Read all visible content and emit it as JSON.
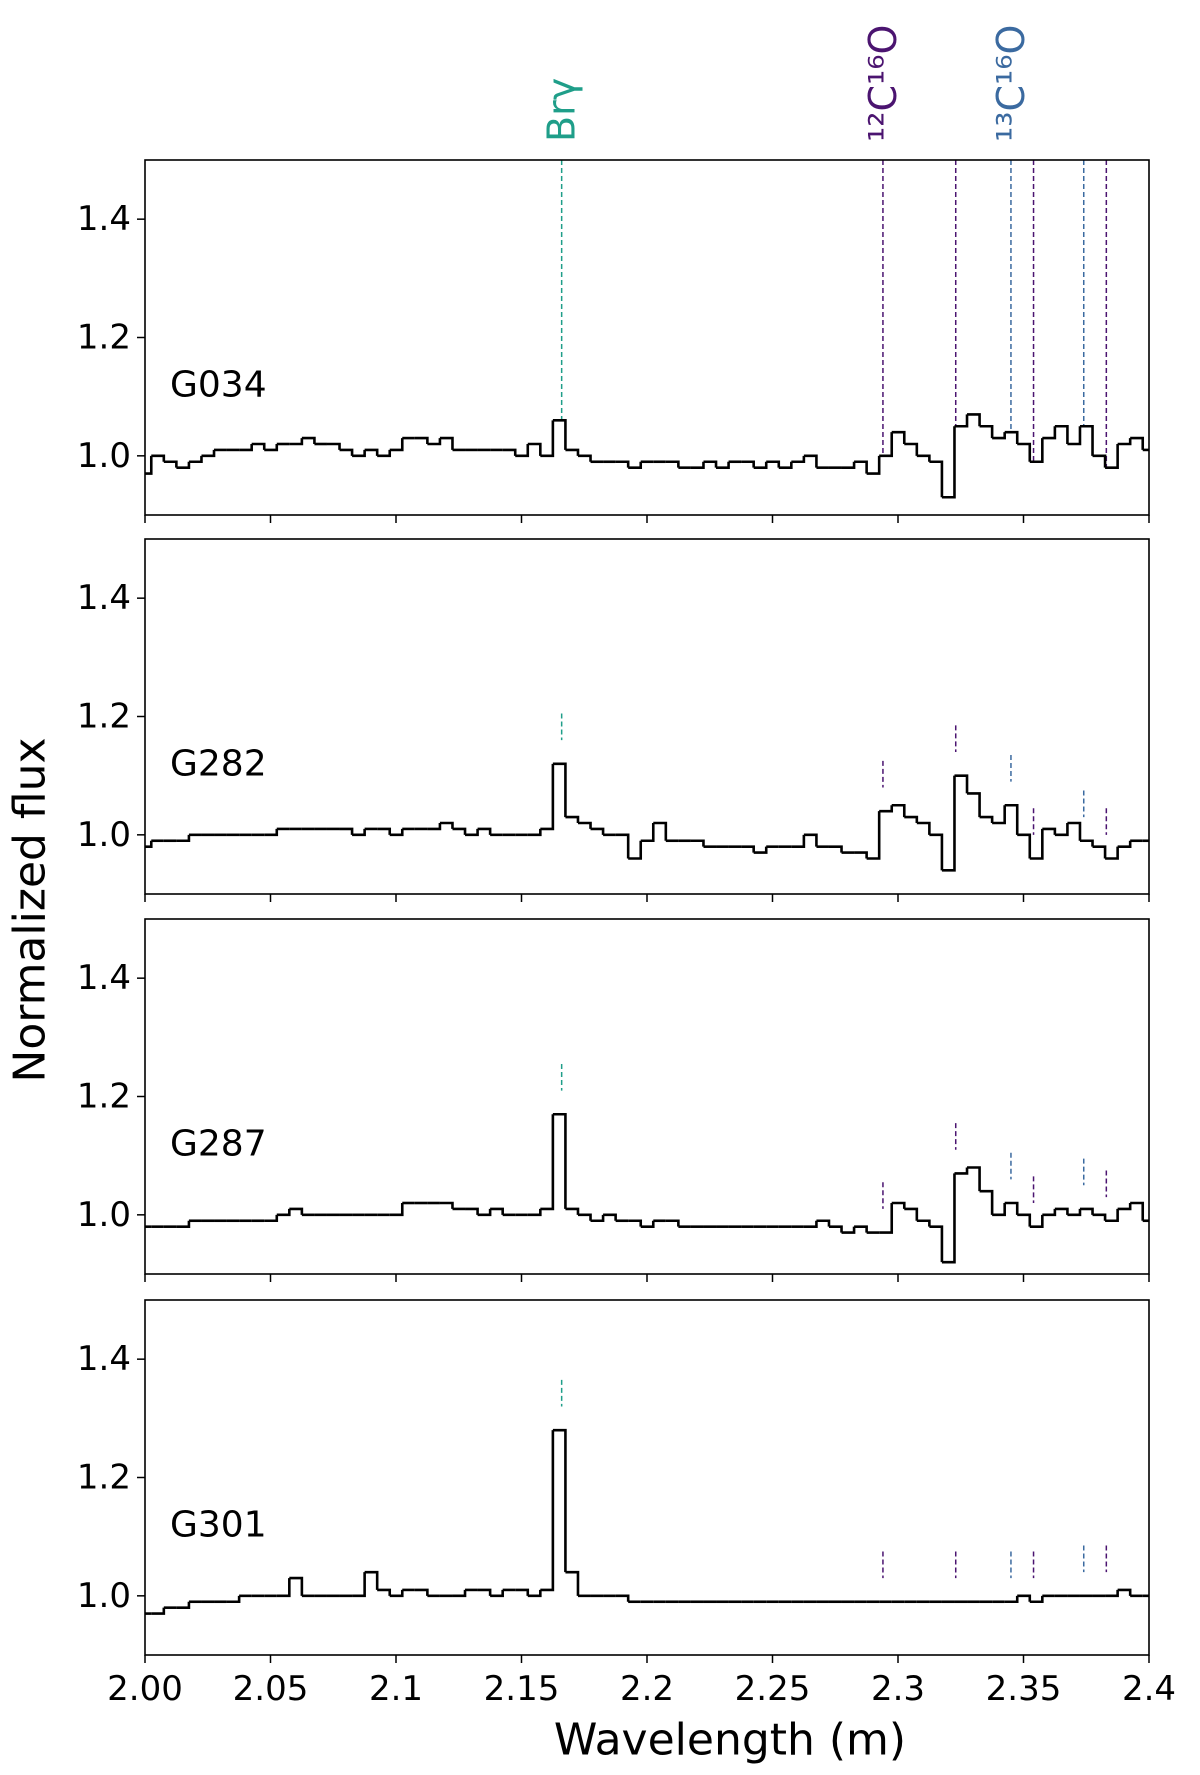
{
  "chart_data": {
    "type": "step",
    "xlabel": "Wavelength (m)",
    "ylabel": "Normalized flux",
    "xlim": [
      2.0,
      2.4
    ],
    "xticks": [
      {
        "value": 2.0,
        "label": "2.00"
      },
      2.05,
      2.1,
      2.15,
      2.2,
      2.25,
      2.3,
      2.35,
      2.4
    ],
    "ylim": [
      0.9,
      1.5
    ],
    "yticks": [
      {
        "value": 1.0,
        "label": "1.0"
      },
      1.2,
      1.4
    ],
    "x": [
      2.0,
      2.005,
      2.01,
      2.015,
      2.02,
      2.025,
      2.03,
      2.035,
      2.04,
      2.045,
      2.05,
      2.055,
      2.06,
      2.065,
      2.07,
      2.075,
      2.08,
      2.085,
      2.09,
      2.095,
      2.1,
      2.105,
      2.11,
      2.115,
      2.12,
      2.125,
      2.13,
      2.135,
      2.14,
      2.145,
      2.15,
      2.155,
      2.16,
      2.165,
      2.17,
      2.175,
      2.18,
      2.185,
      2.19,
      2.195,
      2.2,
      2.205,
      2.21,
      2.215,
      2.22,
      2.225,
      2.23,
      2.235,
      2.24,
      2.245,
      2.25,
      2.255,
      2.26,
      2.265,
      2.27,
      2.275,
      2.28,
      2.285,
      2.29,
      2.295,
      2.3,
      2.305,
      2.31,
      2.315,
      2.32,
      2.325,
      2.33,
      2.335,
      2.34,
      2.345,
      2.35,
      2.355,
      2.36,
      2.365,
      2.37,
      2.375,
      2.38,
      2.385,
      2.39,
      2.395,
      2.4
    ],
    "series": [
      {
        "name": "G034",
        "color": "#000000",
        "values": [
          0.97,
          1.0,
          0.99,
          0.98,
          0.99,
          1.0,
          1.01,
          1.01,
          1.01,
          1.02,
          1.01,
          1.02,
          1.02,
          1.03,
          1.02,
          1.02,
          1.01,
          1.0,
          1.01,
          1.0,
          1.01,
          1.03,
          1.03,
          1.02,
          1.03,
          1.01,
          1.01,
          1.01,
          1.01,
          1.01,
          1.0,
          1.02,
          1.0,
          1.06,
          1.01,
          1.0,
          0.99,
          0.99,
          0.99,
          0.98,
          0.99,
          0.99,
          0.99,
          0.98,
          0.98,
          0.99,
          0.98,
          0.99,
          0.99,
          0.98,
          0.99,
          0.98,
          0.99,
          1.0,
          0.98,
          0.98,
          0.98,
          0.99,
          0.97,
          1.0,
          1.04,
          1.02,
          1.0,
          0.99,
          0.93,
          1.05,
          1.07,
          1.05,
          1.03,
          1.04,
          1.02,
          0.99,
          1.03,
          1.05,
          1.02,
          1.05,
          1.0,
          0.98,
          1.02,
          1.03,
          1.01
        ]
      },
      {
        "name": "G282",
        "color": "#000000",
        "values": [
          0.98,
          0.99,
          0.99,
          0.99,
          1.0,
          1.0,
          1.0,
          1.0,
          1.0,
          1.0,
          1.0,
          1.01,
          1.01,
          1.01,
          1.01,
          1.01,
          1.01,
          1.0,
          1.01,
          1.01,
          1.0,
          1.01,
          1.01,
          1.01,
          1.02,
          1.01,
          1.0,
          1.01,
          1.0,
          1.0,
          1.0,
          1.0,
          1.01,
          1.12,
          1.03,
          1.02,
          1.01,
          1.0,
          1.0,
          0.96,
          0.99,
          1.02,
          0.99,
          0.99,
          0.99,
          0.98,
          0.98,
          0.98,
          0.98,
          0.97,
          0.98,
          0.98,
          0.98,
          1.0,
          0.98,
          0.98,
          0.97,
          0.97,
          0.96,
          1.04,
          1.05,
          1.03,
          1.02,
          1.0,
          0.94,
          1.1,
          1.07,
          1.03,
          1.02,
          1.05,
          1.0,
          0.96,
          1.01,
          1.0,
          1.02,
          0.99,
          0.98,
          0.96,
          0.98,
          0.99,
          0.99
        ]
      },
      {
        "name": "G287",
        "color": "#000000",
        "values": [
          0.98,
          0.98,
          0.98,
          0.98,
          0.99,
          0.99,
          0.99,
          0.99,
          0.99,
          0.99,
          0.99,
          1.0,
          1.01,
          1.0,
          1.0,
          1.0,
          1.0,
          1.0,
          1.0,
          1.0,
          1.0,
          1.02,
          1.02,
          1.02,
          1.02,
          1.01,
          1.01,
          1.0,
          1.01,
          1.0,
          1.0,
          1.0,
          1.01,
          1.17,
          1.01,
          1.0,
          0.99,
          1.0,
          0.99,
          0.99,
          0.98,
          0.99,
          0.99,
          0.98,
          0.98,
          0.98,
          0.98,
          0.98,
          0.98,
          0.98,
          0.98,
          0.98,
          0.98,
          0.98,
          0.99,
          0.98,
          0.97,
          0.98,
          0.97,
          0.97,
          1.02,
          1.01,
          0.99,
          0.98,
          0.92,
          1.07,
          1.08,
          1.04,
          1.0,
          1.02,
          1.0,
          0.98,
          1.0,
          1.01,
          1.0,
          1.01,
          1.0,
          0.99,
          1.01,
          1.02,
          0.99
        ]
      },
      {
        "name": "G301",
        "color": "#000000",
        "values": [
          0.97,
          0.97,
          0.98,
          0.98,
          0.99,
          0.99,
          0.99,
          0.99,
          1.0,
          1.0,
          1.0,
          1.0,
          1.03,
          1.0,
          1.0,
          1.0,
          1.0,
          1.0,
          1.04,
          1.01,
          1.0,
          1.01,
          1.01,
          1.0,
          1.0,
          1.0,
          1.01,
          1.01,
          1.0,
          1.01,
          1.01,
          1.0,
          1.01,
          1.28,
          1.04,
          1.0,
          1.0,
          1.0,
          1.0,
          0.99,
          0.99,
          0.99,
          0.99,
          0.99,
          0.99,
          0.99,
          0.99,
          0.99,
          0.99,
          0.99,
          0.99,
          0.99,
          0.99,
          0.99,
          0.99,
          0.99,
          0.99,
          0.99,
          0.99,
          0.99,
          0.99,
          0.99,
          0.99,
          0.99,
          0.99,
          0.99,
          0.99,
          0.99,
          0.99,
          0.99,
          1.0,
          0.99,
          1.0,
          1.0,
          1.0,
          1.0,
          1.0,
          1.0,
          1.01,
          1.0,
          1.0
        ]
      }
    ],
    "lines": [
      {
        "label": "Brγ",
        "color": "#1f9e89",
        "positions": [
          2.166
        ]
      },
      {
        "label": "¹²C¹⁶O",
        "color": "#4b1470",
        "positions": [
          2.294,
          2.323,
          2.354,
          2.383
        ]
      },
      {
        "label": "¹³C¹⁶O",
        "color": "#3b6aa0",
        "positions": [
          2.345,
          2.374
        ]
      }
    ]
  }
}
